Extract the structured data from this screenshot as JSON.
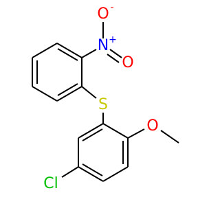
{
  "atoms": [
    {
      "label": "O",
      "charge": "-"
    },
    {
      "label": "N",
      "charge": "+"
    },
    {
      "label": "O"
    },
    {
      "label": "S"
    },
    {
      "label": "O"
    },
    {
      "label": "Cl"
    }
  ]
}
